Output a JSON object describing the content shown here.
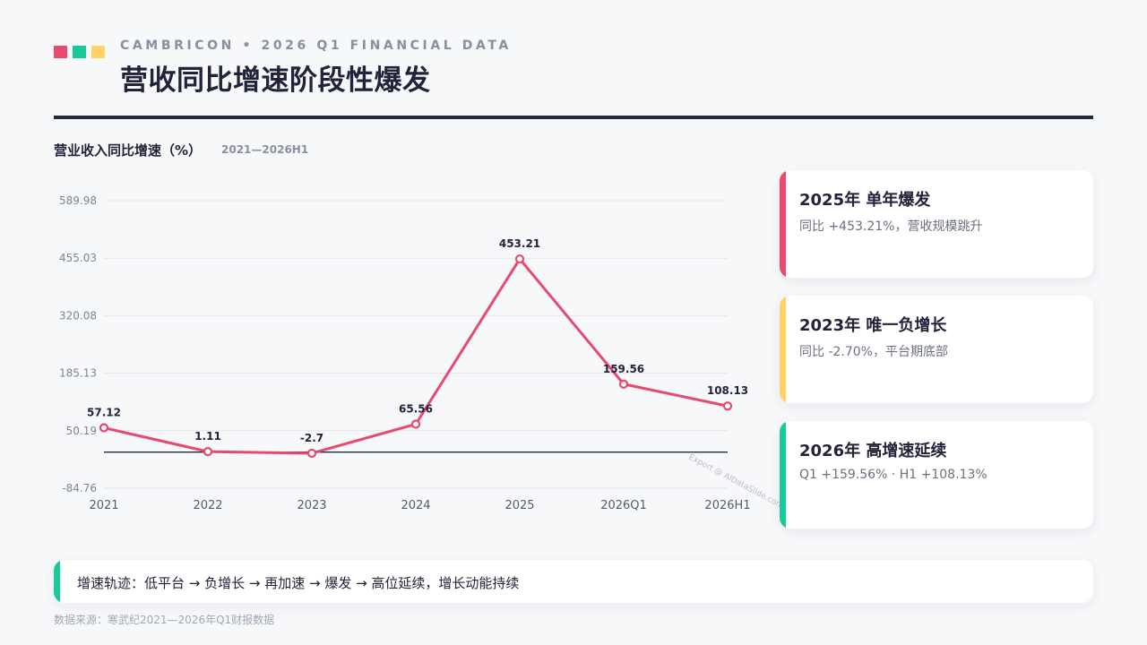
{
  "header": {
    "eyebrow": "CAMBRICON • 2026 Q1 FINANCIAL DATA",
    "title": "营收同比增速阶段性爆发",
    "square_colors": [
      "#e8496f",
      "#18c99a",
      "#ffd166"
    ]
  },
  "colors": {
    "line": "#e8496f",
    "rule": "#262840",
    "accent_red": "#e8496f",
    "accent_yellow": "#ffd166",
    "accent_green": "#18c99a"
  },
  "chart_data": {
    "type": "line",
    "title": "营业收入同比增速（%）",
    "subtitle": "2021—2026H1",
    "categories": [
      "2021",
      "2022",
      "2023",
      "2024",
      "2025",
      "2026Q1",
      "2026H1"
    ],
    "series": [
      {
        "values": [
          57.12,
          1.11,
          -2.7,
          65.56,
          453.21,
          159.56,
          108.13
        ]
      }
    ],
    "data_labels": [
      "57.12",
      "1.11",
      "-2.7",
      "65.56",
      "453.21",
      "159.56",
      "108.13"
    ],
    "yticks": [
      589.98,
      455.03,
      320.08,
      185.13,
      50.19,
      -84.76
    ],
    "ytick_labels": [
      "589.98",
      "455.03",
      "320.08",
      "185.13",
      "50.19",
      "-84.76"
    ],
    "ylim": [
      -84.76,
      589.98
    ],
    "baseline": 0,
    "grid": true,
    "watermark": "Export @ AIDataSlide.com"
  },
  "cards": [
    {
      "title": "2025年 单年爆发",
      "text": "同比 +453.21%，营收规模跳升",
      "color": "#e8496f"
    },
    {
      "title": "2023年 唯一负增长",
      "text": "同比 -2.70%，平台期底部",
      "color": "#ffd166"
    },
    {
      "title": "2026年 高增速延续",
      "text": "Q1 +159.56% · H1 +108.13%",
      "color": "#18c99a"
    }
  ],
  "banner": {
    "text": "增速轨迹：低平台 → 负增长 → 再加速 → 爆发 → 高位延续，增长动能持续",
    "color": "#18c99a"
  },
  "footer": {
    "source": "数据来源：寒武纪2021—2026年Q1财报数据"
  }
}
